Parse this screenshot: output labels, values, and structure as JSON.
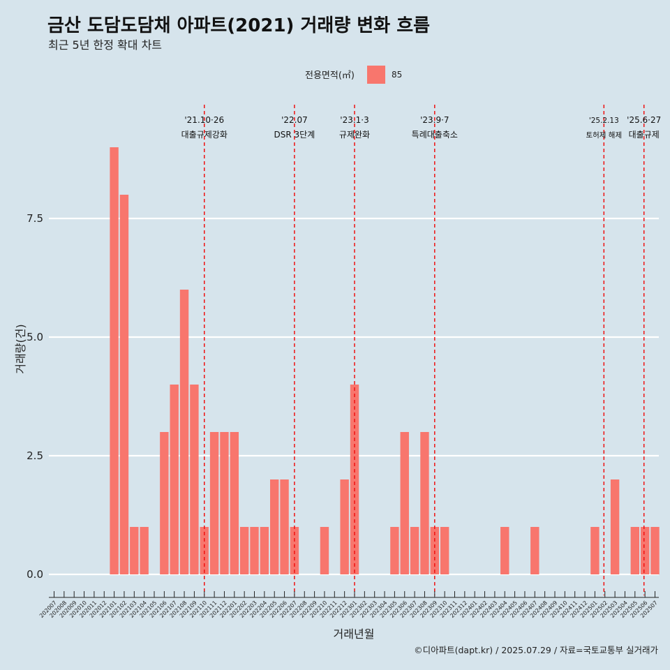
{
  "header": {
    "title": "금산 도담도담채 아파트(2021) 거래량 변화 흐름",
    "subtitle": "최근 5년 한정 확대 차트"
  },
  "legend": {
    "title": "전용면적(㎡)",
    "items": [
      {
        "label": "85",
        "color": "#f8766d"
      }
    ]
  },
  "caption": "©디아파트(dapt.kr) / 2025.07.29 / 자료=국토교통부 실거래가",
  "chart_data": {
    "type": "bar",
    "xlabel": "거래년월",
    "ylabel": "거래량(건)",
    "ylim": [
      -0.45,
      9.2
    ],
    "yticks": [
      "0.0",
      "2.5",
      "5.0",
      "7.5"
    ],
    "ytick_values": [
      0,
      2.5,
      5,
      7.5
    ],
    "grid": true,
    "legend_position": "top",
    "bar_color": "#f8766d",
    "categories": [
      "202007",
      "202008",
      "202009",
      "202010",
      "202011",
      "202012",
      "202101",
      "202102",
      "202103",
      "202104",
      "202105",
      "202106",
      "202107",
      "202108",
      "202109",
      "202110",
      "202111",
      "202112",
      "202201",
      "202202",
      "202203",
      "202204",
      "202205",
      "202206",
      "202207",
      "202208",
      "202209",
      "202210",
      "202211",
      "202212",
      "202301",
      "202302",
      "202303",
      "202304",
      "202305",
      "202306",
      "202307",
      "202308",
      "202309",
      "202310",
      "202311",
      "202312",
      "202401",
      "202402",
      "202403",
      "202404",
      "202405",
      "202406",
      "202407",
      "202408",
      "202409",
      "202410",
      "202411",
      "202412",
      "202501",
      "202502",
      "202503",
      "202504",
      "202505",
      "202506",
      "202507"
    ],
    "values": [
      0,
      0,
      0,
      0,
      0,
      0,
      9,
      8,
      1,
      1,
      0,
      3,
      4,
      6,
      4,
      1,
      3,
      3,
      3,
      1,
      1,
      1,
      2,
      2,
      1,
      0,
      0,
      1,
      0,
      2,
      4,
      0,
      0,
      0,
      1,
      3,
      1,
      3,
      1,
      1,
      0,
      0,
      0,
      0,
      0,
      1,
      0,
      0,
      1,
      0,
      0,
      0,
      0,
      0,
      1,
      0,
      2,
      0,
      1,
      1,
      1
    ],
    "annotations": [
      {
        "date": "'21.10·26",
        "label": "대출규제강화",
        "x_index": 15.0,
        "small": false
      },
      {
        "date": "'22.07",
        "label": "DSR 3단계",
        "x_index": 24.0,
        "small": false
      },
      {
        "date": "'23.1·3",
        "label": "규제완화",
        "x_index": 30.0,
        "small": false
      },
      {
        "date": "'23.9·7",
        "label": "특례대출축소",
        "x_index": 38.0,
        "small": false
      },
      {
        "date": "'25.2.13",
        "label": "토허제 해제",
        "x_index": 54.9,
        "small": true
      },
      {
        "date": "'25.6·27",
        "label": "대출규제",
        "x_index": 58.9,
        "small": false
      }
    ]
  }
}
